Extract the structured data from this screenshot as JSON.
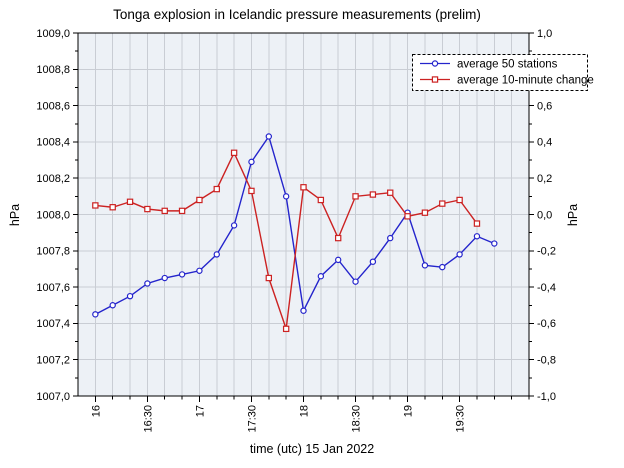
{
  "chart_data": {
    "type": "line",
    "title": "Tonga explosion in Icelandic pressure measurements (prelim)",
    "xlabel": "time (utc) 15 Jan 2022",
    "ylabel_left": "hPa",
    "ylabel_right": "hPa",
    "grid": true,
    "legend_position": "top-right",
    "legend_border": "dashed",
    "x_range_minutes": [
      -10,
      250
    ],
    "x_minor_tick_step_minutes": 10,
    "x_major_ticks": {
      "minutes": [
        0,
        30,
        60,
        90,
        120,
        150,
        180,
        210
      ],
      "labels": [
        "16",
        "16:30",
        "17",
        "17:30",
        "18",
        "18:30",
        "19",
        "19:30"
      ]
    },
    "ylim_left": [
      1007.0,
      1009.0
    ],
    "ylim_right": [
      -1.0,
      1.0
    ],
    "left_axis_ticks": {
      "values": [
        1007.0,
        1007.2,
        1007.4,
        1007.6,
        1007.8,
        1008.0,
        1008.2,
        1008.4,
        1008.6,
        1008.8,
        1009.0
      ],
      "labels": [
        "1007,0",
        "1007,2",
        "1007,4",
        "1007,6",
        "1007,8",
        "1008,0",
        "1008,2",
        "1008,4",
        "1008,6",
        "1008,8",
        "1009,0"
      ]
    },
    "right_axis_ticks": {
      "values": [
        -1.0,
        -0.8,
        -0.6,
        -0.4,
        -0.2,
        0.0,
        0.2,
        0.4,
        0.6,
        0.8,
        1.0
      ],
      "labels": [
        "-1,0",
        "-0,8",
        "-0,6",
        "-0,4",
        "-0,2",
        "0,0",
        "0,2",
        "0,4",
        "0,6",
        "0,8",
        "1,0"
      ]
    },
    "colors": {
      "series_stations": "#2424cc",
      "series_change": "#cc2222",
      "plot_background": "#edf1f6",
      "gridline": "#c9cdd4",
      "axis": "#000000",
      "marker_fill": "#ffffff"
    },
    "series": [
      {
        "name": "average 50 stations",
        "axis": "left",
        "color": "#2424cc",
        "marker": "circle",
        "times": [
          "16:00",
          "16:10",
          "16:20",
          "16:30",
          "16:40",
          "16:50",
          "17:00",
          "17:10",
          "17:20",
          "17:30",
          "17:40",
          "17:50",
          "18:00",
          "18:10",
          "18:20",
          "18:30",
          "18:40",
          "18:50",
          "19:00",
          "19:10",
          "19:20",
          "19:30",
          "19:40",
          "19:50"
        ],
        "values": [
          1007.45,
          1007.5,
          1007.55,
          1007.62,
          1007.65,
          1007.67,
          1007.69,
          1007.78,
          1007.94,
          1008.29,
          1008.43,
          1008.1,
          1007.47,
          1007.66,
          1007.75,
          1007.63,
          1007.74,
          1007.87,
          1008.01,
          1007.72,
          1007.71,
          1007.78,
          1007.88,
          1007.84
        ]
      },
      {
        "name": "average 10-minute change",
        "axis": "right",
        "color": "#cc2222",
        "marker": "square",
        "times": [
          "16:00",
          "16:10",
          "16:20",
          "16:30",
          "16:40",
          "16:50",
          "17:00",
          "17:10",
          "17:20",
          "17:30",
          "17:40",
          "17:50",
          "18:00",
          "18:10",
          "18:20",
          "18:30",
          "18:40",
          "18:50",
          "19:00",
          "19:10",
          "19:20",
          "19:30",
          "19:40"
        ],
        "values": [
          0.05,
          0.04,
          0.07,
          0.03,
          0.02,
          0.02,
          0.08,
          0.14,
          0.34,
          0.13,
          -0.35,
          -0.63,
          0.15,
          0.08,
          -0.13,
          0.1,
          0.11,
          0.12,
          -0.01,
          0.01,
          0.06,
          0.08,
          -0.05
        ]
      }
    ]
  }
}
